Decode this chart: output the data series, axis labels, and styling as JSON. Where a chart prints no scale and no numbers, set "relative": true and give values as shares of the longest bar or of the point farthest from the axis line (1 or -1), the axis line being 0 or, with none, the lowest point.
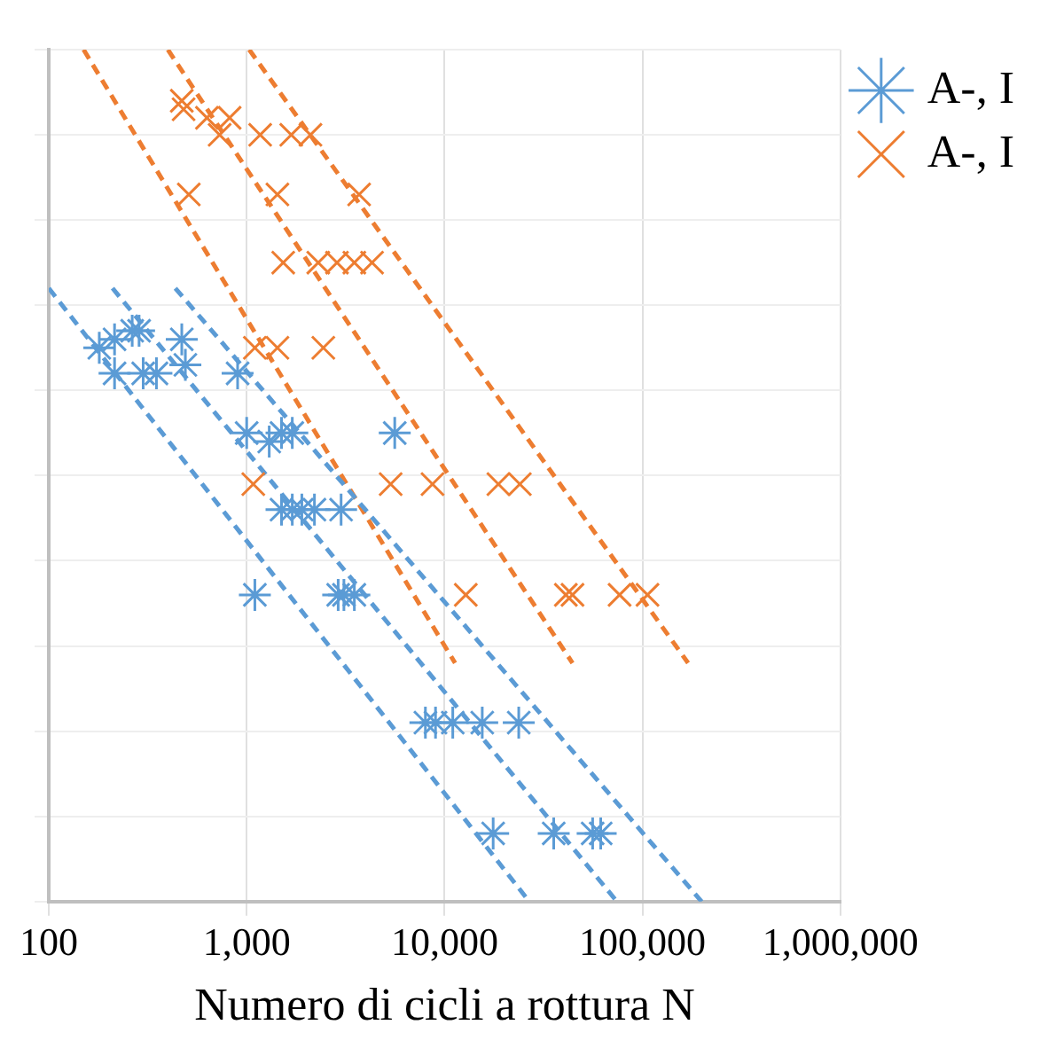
{
  "chart_data": {
    "type": "scatter",
    "xlabel": "Numero di cicli a rottura N",
    "log": "x",
    "relative": true,
    "grid": true,
    "legend": "top right",
    "xlim": [
      100,
      1000000
    ],
    "xticks": [
      {
        "value": 100,
        "label": "100"
      },
      {
        "value": 1000,
        "label": "1,000"
      },
      {
        "value": 10000,
        "label": "10,000"
      },
      {
        "value": 100000,
        "label": "100,000"
      },
      {
        "value": 1000000,
        "label": "1,000,000"
      }
    ],
    "series": [
      {
        "name": "A-, I",
        "type": "scatter",
        "color": "#5b9bd5",
        "x": [
          180,
          215,
          215,
          264,
          286,
          300,
          350,
          470,
          490,
          900,
          1000,
          1300,
          1500,
          1700,
          5600,
          1500,
          1700,
          1900,
          2200,
          3000,
          1100,
          2900,
          3100,
          3500,
          8000,
          9000,
          11000,
          15500,
          23700,
          17600,
          35600,
          56000,
          61500
        ],
        "values": [
          0.65,
          0.66,
          0.62,
          0.67,
          0.67,
          0.62,
          0.62,
          0.66,
          0.63,
          0.62,
          0.55,
          0.54,
          0.55,
          0.55,
          0.55,
          0.46,
          0.46,
          0.46,
          0.46,
          0.46,
          0.36,
          0.36,
          0.36,
          0.36,
          0.21,
          0.21,
          0.21,
          0.21,
          0.21,
          0.08,
          0.08,
          0.08,
          0.08
        ]
      },
      {
        "name": "A-, I",
        "type": "scatter",
        "marker": "cross",
        "color": "#ed7d31",
        "x": [
          470,
          480,
          630,
          730,
          820,
          1170,
          1680,
          2100,
          510,
          1430,
          3700,
          1530,
          2300,
          2860,
          3500,
          4300,
          1100,
          1430,
          2440,
          1080,
          5340,
          8690,
          18700,
          24000,
          12800,
          41000,
          44300,
          76600,
          106000
        ],
        "values": [
          0.94,
          0.93,
          0.92,
          0.9,
          0.92,
          0.9,
          0.9,
          0.9,
          0.83,
          0.83,
          0.83,
          0.75,
          0.75,
          0.75,
          0.75,
          0.75,
          0.65,
          0.65,
          0.65,
          0.49,
          0.49,
          0.49,
          0.49,
          0.49,
          0.36,
          0.36,
          0.36,
          0.36,
          0.36
        ]
      },
      {
        "type": "line",
        "color": "#5b9bd5",
        "line_style": "dashed",
        "marker": "none",
        "x": [
          100,
          26800
        ],
        "values": [
          0.72,
          0
        ]
      },
      {
        "type": "line",
        "color": "#5b9bd5",
        "line_style": "dashed",
        "marker": "none",
        "x": [
          210,
          74300
        ],
        "values": [
          0.72,
          0
        ]
      },
      {
        "type": "line",
        "color": "#5b9bd5",
        "line_style": "dashed",
        "marker": "none",
        "x": [
          436,
          199000
        ],
        "values": [
          0.72,
          0
        ]
      },
      {
        "type": "line",
        "color": "#ed7d31",
        "line_style": "dashed",
        "marker": "none",
        "x": [
          150,
          11300
        ],
        "values": [
          1,
          0.28
        ]
      },
      {
        "type": "line",
        "color": "#ed7d31",
        "line_style": "dashed",
        "marker": "none",
        "x": [
          400,
          44300
        ],
        "values": [
          1,
          0.28
        ]
      },
      {
        "type": "line",
        "color": "#ed7d31",
        "line_style": "dashed",
        "marker": "none",
        "x": [
          1030,
          170000
        ],
        "values": [
          1,
          0.28
        ]
      }
    ]
  }
}
